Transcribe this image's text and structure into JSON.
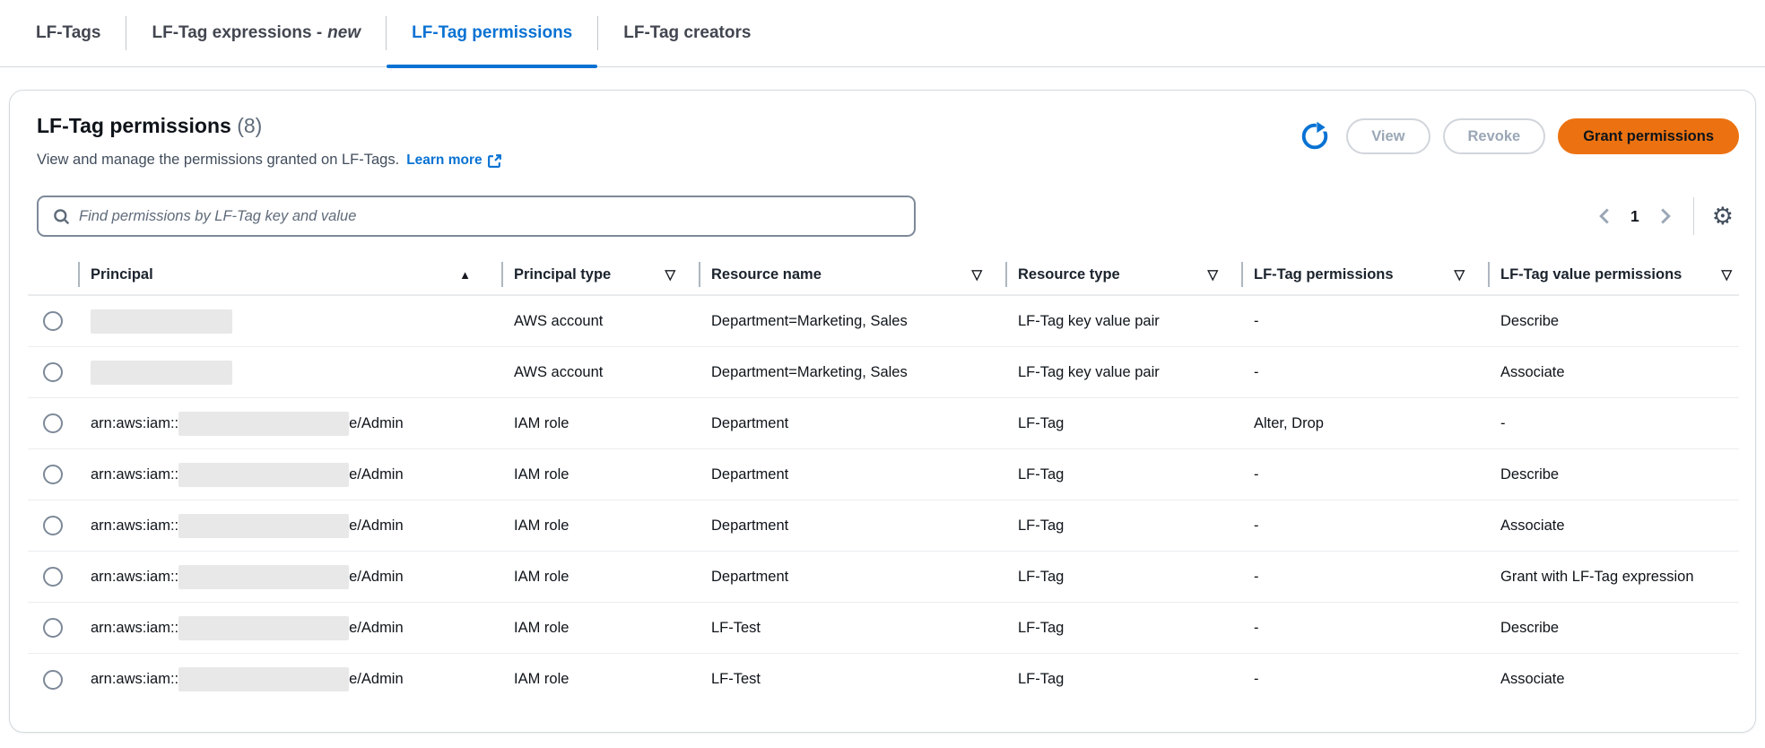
{
  "tabs": {
    "items": [
      {
        "label": "LF-Tags",
        "active": false
      },
      {
        "label": "LF-Tag expressions -",
        "label_em": "new",
        "active": false
      },
      {
        "label": "LF-Tag permissions",
        "active": true
      },
      {
        "label": "LF-Tag creators",
        "active": false
      }
    ]
  },
  "panel": {
    "title": "LF-Tag permissions",
    "count": "(8)",
    "description": "View and manage the permissions granted on LF-Tags.",
    "learn_more_label": "Learn more",
    "actions": {
      "view_label": "View",
      "revoke_label": "Revoke",
      "grant_label": "Grant permissions"
    }
  },
  "search": {
    "placeholder": "Find permissions by LF-Tag key and value",
    "value": ""
  },
  "pagination": {
    "current_page": "1"
  },
  "icons": {
    "refresh": "circular-arrow",
    "settings_gear": "⚙",
    "sort_ascending": "▲",
    "filter": "▽",
    "external_link": "box-with-arrow",
    "search": "magnifier"
  },
  "colors": {
    "accent_blue": "#0972d3",
    "primary_orange": "#ec7211",
    "border_gray": "#d4d9de"
  },
  "table": {
    "columns": [
      {
        "label": "Principal",
        "sorted": "ascending"
      },
      {
        "label": "Principal type",
        "filterable": true
      },
      {
        "label": "Resource name",
        "filterable": true
      },
      {
        "label": "Resource type",
        "filterable": true
      },
      {
        "label": "LF-Tag permissions",
        "filterable": true
      },
      {
        "label": "LF-Tag value permissions",
        "filterable": true
      }
    ],
    "rows": [
      {
        "principal_prefix": "",
        "principal_redacted": true,
        "principal_suffix": "",
        "principal_type": "AWS account",
        "resource_name": "Department=Marketing, Sales",
        "resource_type": "LF-Tag key value pair",
        "lf_tag_permissions": "-",
        "lf_tag_value_permissions": "Describe"
      },
      {
        "principal_prefix": "",
        "principal_redacted": true,
        "principal_suffix": "",
        "principal_type": "AWS account",
        "resource_name": "Department=Marketing, Sales",
        "resource_type": "LF-Tag key value pair",
        "lf_tag_permissions": "-",
        "lf_tag_value_permissions": "Associate"
      },
      {
        "principal_prefix": "arn:aws:iam::",
        "principal_redacted": true,
        "principal_suffix": "e/Admin",
        "principal_type": "IAM role",
        "resource_name": "Department",
        "resource_type": "LF-Tag",
        "lf_tag_permissions": "Alter, Drop",
        "lf_tag_value_permissions": "-"
      },
      {
        "principal_prefix": "arn:aws:iam::",
        "principal_redacted": true,
        "principal_suffix": "e/Admin",
        "principal_type": "IAM role",
        "resource_name": "Department",
        "resource_type": "LF-Tag",
        "lf_tag_permissions": "-",
        "lf_tag_value_permissions": "Describe"
      },
      {
        "principal_prefix": "arn:aws:iam::",
        "principal_redacted": true,
        "principal_suffix": "e/Admin",
        "principal_type": "IAM role",
        "resource_name": "Department",
        "resource_type": "LF-Tag",
        "lf_tag_permissions": "-",
        "lf_tag_value_permissions": "Associate"
      },
      {
        "principal_prefix": "arn:aws:iam::",
        "principal_redacted": true,
        "principal_suffix": "e/Admin",
        "principal_type": "IAM role",
        "resource_name": "Department",
        "resource_type": "LF-Tag",
        "lf_tag_permissions": "-",
        "lf_tag_value_permissions": "Grant with LF-Tag expression"
      },
      {
        "principal_prefix": "arn:aws:iam::",
        "principal_redacted": true,
        "principal_suffix": "e/Admin",
        "principal_type": "IAM role",
        "resource_name": "LF-Test",
        "resource_type": "LF-Tag",
        "lf_tag_permissions": "-",
        "lf_tag_value_permissions": "Describe"
      },
      {
        "principal_prefix": "arn:aws:iam::",
        "principal_redacted": true,
        "principal_suffix": "e/Admin",
        "principal_type": "IAM role",
        "resource_name": "LF-Test",
        "resource_type": "LF-Tag",
        "lf_tag_permissions": "-",
        "lf_tag_value_permissions": "Associate"
      }
    ]
  }
}
